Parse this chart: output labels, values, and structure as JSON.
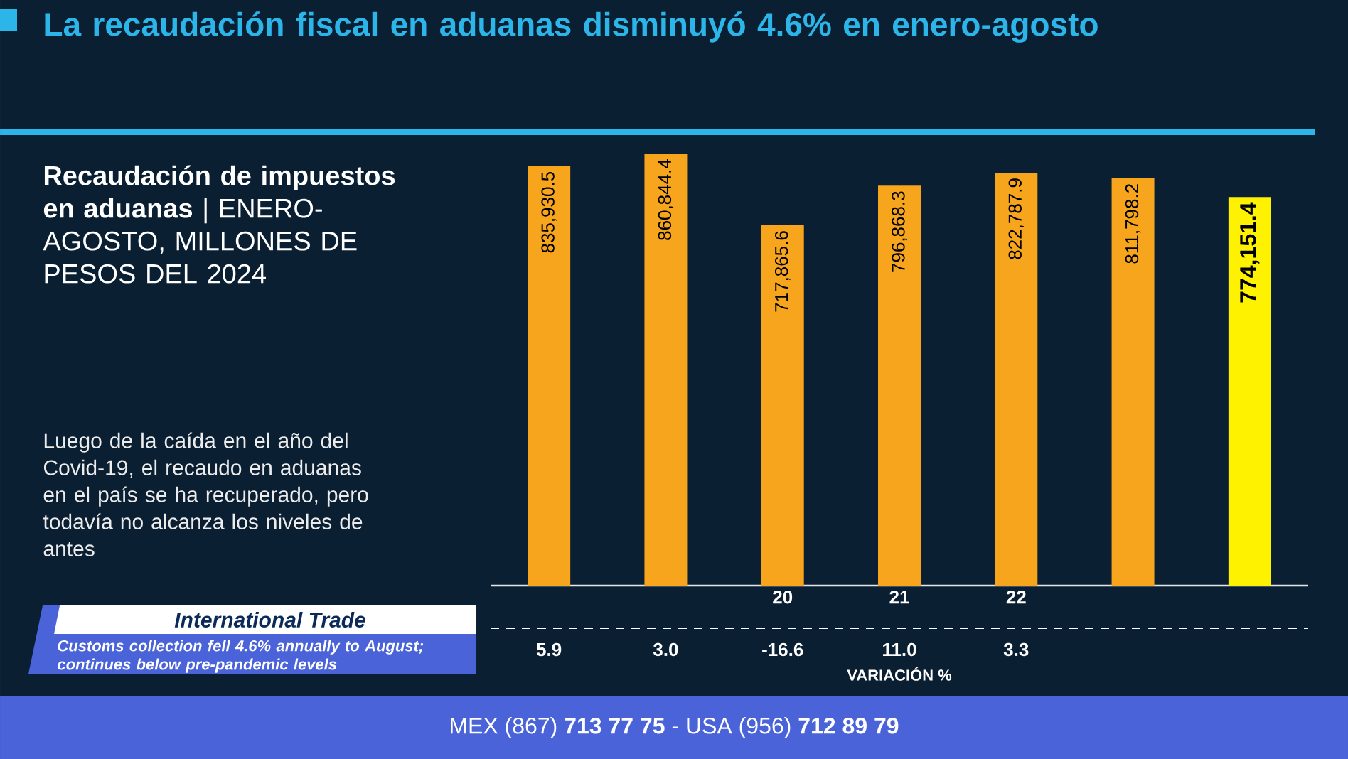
{
  "chart_data": {
    "type": "bar",
    "title": "La recaudación fiscal en aduanas disminuyó 4.6% en enero-agosto",
    "subtitle": "**Recaudación de impuestos en aduanas** | ENERO-AGOSTO, MILLONES DE PESOS DEL 2024",
    "categories": [
      null,
      null,
      "20",
      "21",
      "22",
      null,
      null
    ],
    "values": [
      835930.5,
      860844.4,
      717865.6,
      796868.3,
      822787.9,
      811798.2,
      774151.4
    ],
    "colors": [
      "#f7a51c",
      "#f7a51c",
      "#f7a51c",
      "#f7a51c",
      "#f7a51c",
      "#f7a51c",
      "#fff200"
    ],
    "value_labels": [
      "835,930.5",
      "860,844.4",
      "717,865.6",
      "796,868.3",
      "822,787.9",
      "811,798.2",
      "774,151.4"
    ],
    "tick_labels": "x",
    "annotations": [
      "Luego de la caída en el año del Covid-19, el recaudo en aduanas en el país se ha recuperado, pero todavía no alcanza los niveles de antes",
      "International Trade",
      "Customs collection fell 4.6% annually to August; continues below pre-pandemic levels",
      "VARIACIÓN %",
      "5.9",
      "3.0",
      "-16.6",
      "11.0",
      "3.3",
      "MEX (867) **713 77 75** - USA (956) **712 89 79**"
    ]
  }
}
